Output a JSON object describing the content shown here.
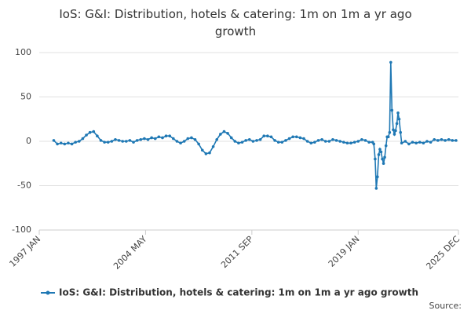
{
  "chart_data": {
    "type": "line",
    "title": "IoS: G&I: Distribution, hotels & catering: 1m on 1m a yr ago growth",
    "source": "Source:",
    "x": [
      1998.0,
      1998.25,
      1998.5,
      1998.75,
      1999.0,
      1999.25,
      1999.5,
      1999.75,
      2000.0,
      2000.25,
      2000.5,
      2000.75,
      2001.0,
      2001.25,
      2001.5,
      2001.75,
      2002.0,
      2002.25,
      2002.5,
      2002.75,
      2003.0,
      2003.25,
      2003.5,
      2003.75,
      2004.0,
      2004.25,
      2004.5,
      2004.75,
      2005.0,
      2005.25,
      2005.5,
      2005.75,
      2006.0,
      2006.25,
      2006.5,
      2006.75,
      2007.0,
      2007.25,
      2007.5,
      2007.75,
      2008.0,
      2008.25,
      2008.5,
      2008.75,
      2009.0,
      2009.25,
      2009.5,
      2009.75,
      2010.0,
      2010.25,
      2010.5,
      2010.75,
      2011.0,
      2011.25,
      2011.5,
      2011.75,
      2012.0,
      2012.25,
      2012.5,
      2012.75,
      2013.0,
      2013.25,
      2013.5,
      2013.75,
      2014.0,
      2014.25,
      2014.5,
      2014.75,
      2015.0,
      2015.25,
      2015.5,
      2015.75,
      2016.0,
      2016.25,
      2016.5,
      2016.75,
      2017.0,
      2017.25,
      2017.5,
      2017.75,
      2018.0,
      2018.25,
      2018.5,
      2018.75,
      2019.0,
      2019.25,
      2019.5,
      2019.75,
      2020.0,
      2020.08,
      2020.17,
      2020.25,
      2020.33,
      2020.42,
      2020.5,
      2020.58,
      2020.67,
      2020.75,
      2020.83,
      2020.92,
      2021.0,
      2021.08,
      2021.17,
      2021.25,
      2021.33,
      2021.42,
      2021.5,
      2021.58,
      2021.67,
      2021.75,
      2021.83,
      2021.92,
      2022.0,
      2022.25,
      2022.5,
      2022.75,
      2023.0,
      2023.25,
      2023.5,
      2023.75,
      2024.0,
      2024.25,
      2024.5,
      2024.75,
      2025.0,
      2025.25,
      2025.5,
      2025.75
    ],
    "series": [
      {
        "name": "IoS: G&I: Distribution, hotels & catering: 1m on 1m a yr ago growth",
        "color": "#1f78b4",
        "values": [
          1,
          -3,
          -2,
          -3,
          -2,
          -3,
          -1,
          0,
          3,
          7,
          10,
          11,
          6,
          1,
          -1,
          -1,
          0,
          2,
          1,
          0,
          0,
          1,
          -1,
          1,
          2,
          3,
          2,
          4,
          3,
          5,
          4,
          6,
          6,
          3,
          0,
          -2,
          0,
          3,
          4,
          2,
          -3,
          -10,
          -14,
          -13,
          -6,
          2,
          8,
          11,
          9,
          4,
          0,
          -2,
          -1,
          1,
          2,
          0,
          1,
          2,
          6,
          6,
          5,
          1,
          -1,
          -1,
          1,
          3,
          5,
          5,
          4,
          3,
          0,
          -2,
          -1,
          1,
          2,
          0,
          0,
          2,
          1,
          0,
          -1,
          -2,
          -2,
          -1,
          0,
          2,
          1,
          -1,
          -1,
          -3,
          -20,
          -53,
          -40,
          -15,
          -9,
          -12,
          -20,
          -25,
          -18,
          -5,
          5,
          5,
          10,
          89,
          35,
          13,
          8,
          12,
          20,
          32,
          25,
          10,
          -2,
          0,
          -3,
          -1,
          -2,
          -1,
          -2,
          0,
          -1,
          2,
          1,
          2,
          1,
          2,
          1,
          1
        ]
      }
    ],
    "xlim": [
      1997.0,
      2025.917
    ],
    "xticks": [
      {
        "value": 1997.0,
        "label": "1997 JAN"
      },
      {
        "value": 2004.333,
        "label": "2004 MAY"
      },
      {
        "value": 2011.667,
        "label": "2011 SEP"
      },
      {
        "value": 2019.0,
        "label": "2019 JAN"
      },
      {
        "value": 2025.917,
        "label": "2025 DEC"
      }
    ],
    "ylim": [
      -100,
      100
    ],
    "yticks": [
      -100,
      -50,
      0,
      50,
      100
    ],
    "grid": true
  }
}
